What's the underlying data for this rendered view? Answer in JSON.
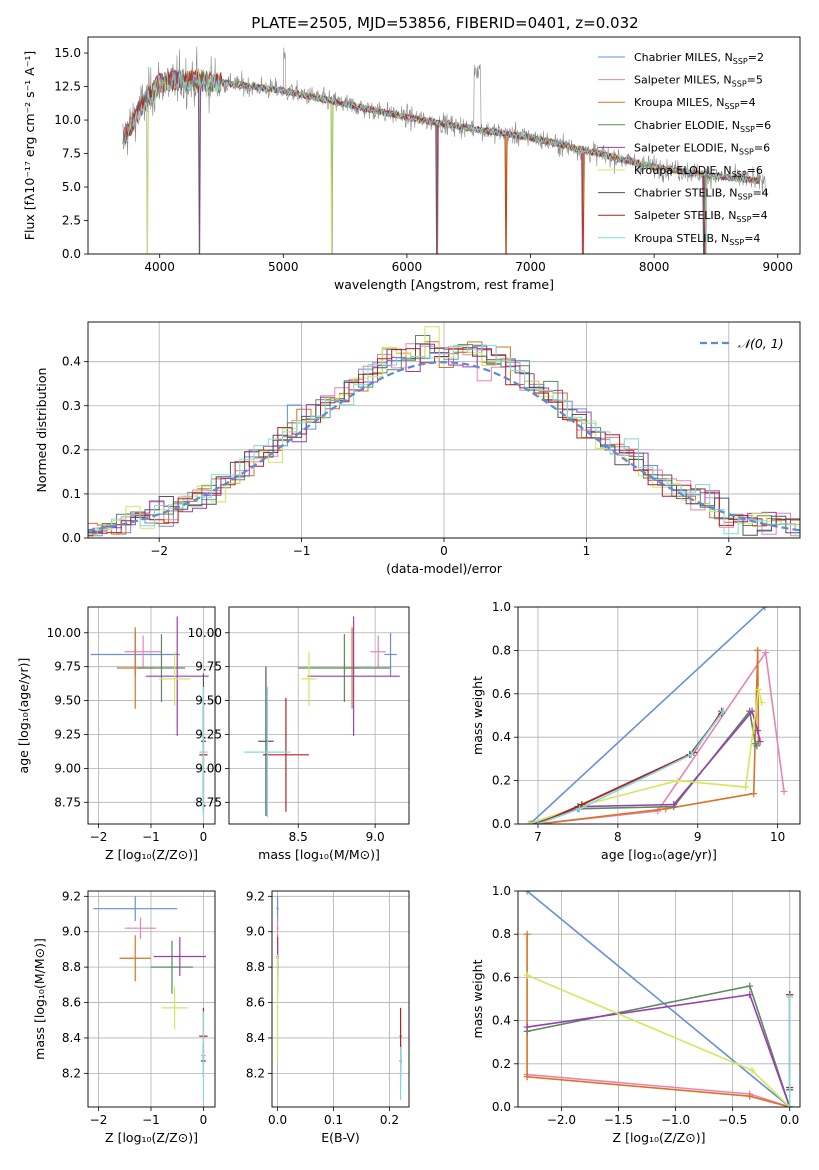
{
  "title": "PLATE=2505, MJD=53856, FIBERID=0401, z=0.032",
  "legend_spectrum": [
    {
      "name": "Chabrier MILES",
      "nssp": "2"
    },
    {
      "name": "Salpeter MILES",
      "nssp": "5"
    },
    {
      "name": "Kroupa MILES",
      "nssp": "4"
    },
    {
      "name": "Chabrier ELODIE",
      "nssp": "6"
    },
    {
      "name": "Salpeter ELODIE",
      "nssp": "6"
    },
    {
      "name": "Kroupa ELODIE",
      "nssp": "6"
    },
    {
      "name": "Chabrier STELIB",
      "nssp": "4"
    },
    {
      "name": "Salpeter STELIB",
      "nssp": "4"
    },
    {
      "name": "Kroupa STELIB",
      "nssp": "4"
    }
  ],
  "legend_gauss": "𝒩(0, 1)",
  "colors": [
    "#6a8fd8",
    "#e884b4",
    "#d97325",
    "#5a8a5e",
    "#9a3fb0",
    "#d4e75a",
    "#555555",
    "#b22222",
    "#82d8dc"
  ],
  "chart_data": [
    {
      "id": "spectrum",
      "type": "line",
      "xlabel": "wavelength [Angstrom, rest frame]",
      "ylabel": "Flux [fλ10⁻¹⁷ erg cm⁻² s⁻¹ A⁻¹]",
      "xlim": [
        3420,
        9180
      ],
      "ylim": [
        0,
        16.2
      ],
      "xticks": [
        4000,
        5000,
        6000,
        7000,
        8000,
        9000
      ],
      "yticks": [
        0.0,
        2.5,
        5.0,
        7.5,
        10.0,
        12.5,
        15.0
      ],
      "model_shape": {
        "x": [
          3700,
          3850,
          4000,
          4200,
          4500,
          5000,
          5500,
          6000,
          6500,
          7000,
          7500,
          8000,
          8500,
          8900
        ],
        "y": [
          8.5,
          11.0,
          12.8,
          13.0,
          12.8,
          12.2,
          11.2,
          10.2,
          9.4,
          8.7,
          7.6,
          6.5,
          5.8,
          5.4
        ]
      }
    },
    {
      "id": "residuals",
      "type": "step",
      "xlabel": "(data-model)/error",
      "ylabel": "Normed distribution",
      "xlim": [
        -2.5,
        2.5
      ],
      "ylim": [
        0,
        0.49
      ],
      "xticks": [
        -2,
        -1,
        0,
        1,
        2
      ],
      "yticks": [
        0.0,
        0.1,
        0.2,
        0.3,
        0.4
      ]
    },
    {
      "id": "age-z",
      "type": "errorbar",
      "xlabel": "Z [log₁₀(Z/Z⊙)]",
      "ylabel": "age  [log₁₀(age/yr)]",
      "xlim": [
        -2.2,
        0.22
      ],
      "ylim": [
        8.59,
        10.19
      ],
      "xticks": [
        -2,
        -1,
        0
      ],
      "yticks": [
        8.75,
        9.0,
        9.25,
        9.5,
        9.75,
        10.0
      ],
      "points": [
        {
          "x": -1.3,
          "y": 9.84,
          "xerr": 0.85,
          "yerr": 0.16
        },
        {
          "x": -1.15,
          "y": 9.86,
          "xerr": 0.35,
          "yerr": 0.12
        },
        {
          "x": -1.3,
          "y": 9.74,
          "xerr": 0.35,
          "yerr": 0.3
        },
        {
          "x": -0.8,
          "y": 9.74,
          "xerr": 0.45,
          "yerr": 0.25
        },
        {
          "x": -0.5,
          "y": 9.68,
          "xerr": 0.6,
          "yerr": 0.44
        },
        {
          "x": -0.55,
          "y": 9.66,
          "xerr": 0.3,
          "yerr": 0.2
        },
        {
          "x": 0.0,
          "y": 9.2,
          "xerr": 0.05,
          "yerr": 0.5
        },
        {
          "x": 0.0,
          "y": 9.1,
          "xerr": 0.08,
          "yerr": 0.42
        },
        {
          "x": 0.0,
          "y": 9.12,
          "xerr": 0.08,
          "yerr": 0.48
        }
      ]
    },
    {
      "id": "age-mass",
      "type": "errorbar",
      "xlabel": "mass [log₁₀(M/M⊙)]",
      "ylabel": "",
      "xlim": [
        8.05,
        9.22
      ],
      "ylim": [
        8.59,
        10.19
      ],
      "xticks": [
        8.5,
        9.0
      ],
      "yticks": [
        8.75,
        9.0,
        9.25,
        9.5,
        9.75,
        10.0
      ],
      "points": [
        {
          "x": 9.1,
          "y": 9.84,
          "xerr": 0.04,
          "yerr": 0.16
        },
        {
          "x": 9.02,
          "y": 9.86,
          "xerr": 0.05,
          "yerr": 0.12
        },
        {
          "x": 8.85,
          "y": 9.74,
          "xerr": 0.05,
          "yerr": 0.3
        },
        {
          "x": 8.8,
          "y": 9.74,
          "xerr": 0.3,
          "yerr": 0.25
        },
        {
          "x": 8.86,
          "y": 9.68,
          "xerr": 0.3,
          "yerr": 0.44
        },
        {
          "x": 8.57,
          "y": 9.66,
          "xerr": 0.05,
          "yerr": 0.2
        },
        {
          "x": 8.29,
          "y": 9.2,
          "xerr": 0.05,
          "yerr": 0.55
        },
        {
          "x": 8.42,
          "y": 9.1,
          "xerr": 0.15,
          "yerr": 0.42
        },
        {
          "x": 8.3,
          "y": 9.12,
          "xerr": 0.15,
          "yerr": 0.48
        }
      ]
    },
    {
      "id": "weight-age",
      "type": "line",
      "xlabel": "age  [log₁₀(age/yr)]",
      "ylabel": "mass weight",
      "xlim": [
        6.75,
        10.28
      ],
      "ylim": [
        0,
        1
      ],
      "xticks": [
        7,
        8,
        9,
        10
      ],
      "yticks": [
        0.0,
        0.2,
        0.4,
        0.6,
        0.8,
        1.0
      ],
      "series": [
        {
          "x": [
            6.9,
            9.84
          ],
          "y": [
            0.0,
            1.0
          ]
        },
        {
          "x": [
            7.0,
            8.5,
            9.85,
            10.08
          ],
          "y": [
            0.0,
            0.06,
            0.79,
            0.15
          ]
        },
        {
          "x": [
            7.0,
            8.6,
            9.7,
            9.75,
            9.76
          ],
          "y": [
            0.0,
            0.07,
            0.14,
            0.8,
            0.38
          ]
        },
        {
          "x": [
            6.92,
            7.5,
            8.7,
            9.65,
            9.72,
            9.74
          ],
          "y": [
            0.0,
            0.07,
            0.08,
            0.52,
            0.37,
            0.36
          ]
        },
        {
          "x": [
            6.95,
            7.55,
            8.7,
            9.68,
            9.75,
            9.78
          ],
          "y": [
            0.0,
            0.08,
            0.09,
            0.52,
            0.43,
            0.38
          ]
        },
        {
          "x": [
            6.88,
            7.6,
            8.75,
            9.6,
            9.76,
            9.8
          ],
          "y": [
            0.0,
            0.09,
            0.2,
            0.17,
            0.62,
            0.56
          ]
        },
        {
          "x": [
            7.0,
            7.5,
            8.9,
            9.3
          ],
          "y": [
            0.0,
            0.08,
            0.32,
            0.51
          ]
        },
        {
          "x": [
            7.0,
            7.55,
            8.95,
            9.3
          ],
          "y": [
            0.0,
            0.09,
            0.33,
            0.52
          ]
        },
        {
          "x": [
            7.0,
            7.52,
            8.92,
            9.32
          ],
          "y": [
            0.0,
            0.07,
            0.32,
            0.52
          ]
        }
      ]
    },
    {
      "id": "mass-z",
      "type": "errorbar",
      "xlabel": "Z [log₁₀(Z/Z⊙)]",
      "ylabel": "mass [log₁₀(M/M⊙)]",
      "xlim": [
        -2.2,
        0.22
      ],
      "ylim": [
        8.01,
        9.23
      ],
      "xticks": [
        -2,
        -1,
        0
      ],
      "yticks": [
        8.2,
        8.4,
        8.6,
        8.8,
        9.0,
        9.2
      ],
      "points": [
        {
          "x": -1.3,
          "y": 9.13,
          "xerr": 0.8,
          "yerr": 0.07
        },
        {
          "x": -1.2,
          "y": 9.02,
          "xerr": 0.3,
          "yerr": 0.06
        },
        {
          "x": -1.3,
          "y": 8.85,
          "xerr": 0.3,
          "yerr": 0.13
        },
        {
          "x": -0.6,
          "y": 8.8,
          "xerr": 0.4,
          "yerr": 0.15
        },
        {
          "x": -0.45,
          "y": 8.86,
          "xerr": 0.5,
          "yerr": 0.11
        },
        {
          "x": -0.55,
          "y": 8.57,
          "xerr": 0.25,
          "yerr": 0.12
        },
        {
          "x": 0.0,
          "y": 8.27,
          "xerr": 0.05,
          "yerr": 0.09
        },
        {
          "x": 0.0,
          "y": 8.41,
          "xerr": 0.08,
          "yerr": 0.16
        },
        {
          "x": 0.0,
          "y": 8.3,
          "xerr": 0.05,
          "yerr": 0.25
        }
      ]
    },
    {
      "id": "mass-ebv",
      "type": "errorbar",
      "xlabel": "E(B-V)",
      "ylabel": "",
      "xlim": [
        -0.01,
        0.235
      ],
      "ylim": [
        8.01,
        9.23
      ],
      "xticks": [
        0.0,
        0.1,
        0.2
      ],
      "yticks": [
        8.2,
        8.4,
        8.6,
        8.8,
        9.0,
        9.2
      ],
      "points": [
        {
          "x": 0.0,
          "y": 9.13,
          "xerr": 0.002,
          "yerr": 0.07
        },
        {
          "x": 0.0,
          "y": 9.02,
          "xerr": 0.002,
          "yerr": 0.06
        },
        {
          "x": 0.0,
          "y": 8.85,
          "xerr": 0.002,
          "yerr": 0.13
        },
        {
          "x": 0.0,
          "y": 8.8,
          "xerr": 0.002,
          "yerr": 0.15
        },
        {
          "x": 0.0,
          "y": 8.86,
          "xerr": 0.002,
          "yerr": 0.11
        },
        {
          "x": 0.0,
          "y": 8.57,
          "xerr": 0.002,
          "yerr": 0.3
        },
        {
          "x": 0.22,
          "y": 8.27,
          "xerr": 0.002,
          "yerr": 0.09
        },
        {
          "x": 0.22,
          "y": 8.41,
          "xerr": 0.002,
          "yerr": 0.16
        },
        {
          "x": 0.22,
          "y": 8.2,
          "xerr": 0.002,
          "yerr": 0.15
        }
      ]
    },
    {
      "id": "weight-z",
      "type": "line",
      "xlabel": "Z [log₁₀(Z/Z⊙)]",
      "ylabel": "mass weight",
      "xlim": [
        -2.38,
        0.09
      ],
      "ylim": [
        0,
        1
      ],
      "xticks": [
        -2.0,
        -1.5,
        -1.0,
        -0.5,
        0.0
      ],
      "yticks": [
        0.0,
        0.2,
        0.4,
        0.6,
        0.8,
        1.0
      ],
      "series": [
        {
          "x": [
            -2.3,
            0.0
          ],
          "y": [
            1.0,
            0.0
          ]
        },
        {
          "x": [
            -2.3,
            -0.35,
            0.0
          ],
          "y": [
            0.15,
            0.06,
            0.0
          ]
        },
        {
          "x": [
            -2.3,
            -2.3,
            -0.35,
            0.0
          ],
          "y": [
            0.8,
            0.14,
            0.05,
            0.0
          ]
        },
        {
          "x": [
            -2.3,
            -0.35,
            0.0
          ],
          "y": [
            0.35,
            0.56,
            0.0
          ]
        },
        {
          "x": [
            -2.3,
            -0.35,
            0.0
          ],
          "y": [
            0.37,
            0.52,
            0.0
          ]
        },
        {
          "x": [
            -2.3,
            -0.33,
            0.0
          ],
          "y": [
            0.61,
            0.17,
            0.0
          ]
        },
        {
          "x": [
            0.0,
            0.0
          ],
          "y": [
            0.08,
            0.52
          ]
        },
        {
          "x": [
            0.0,
            0.0
          ],
          "y": [
            0.09,
            0.52
          ]
        },
        {
          "x": [
            0.0,
            0.0
          ],
          "y": [
            0.0,
            0.51
          ]
        }
      ]
    }
  ]
}
